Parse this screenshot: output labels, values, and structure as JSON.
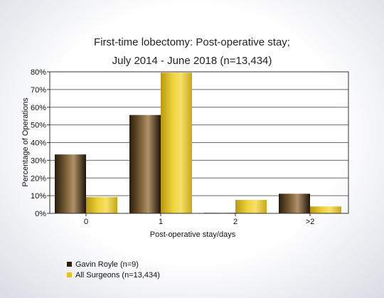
{
  "chart_data": {
    "type": "bar",
    "title": [
      "First-time lobectomy: Post-operative stay;",
      "July 2014 - June 2018 (n=13,434)"
    ],
    "xlabel": "Post-operative stay/days",
    "ylabel": "Percentage of Operations",
    "categories": [
      "0",
      "1",
      "2",
      ">2"
    ],
    "ylim": [
      0,
      80
    ],
    "yticks": [
      "0%",
      "10%",
      "20%",
      "30%",
      "40%",
      "50%",
      "60%",
      "70%",
      "80%"
    ],
    "grid": true,
    "legend_position": "bottom-left",
    "series": [
      {
        "name": "Gavin Royle (n=9)",
        "values": [
          33.3,
          55.6,
          0.2,
          11.1
        ],
        "color": "#3b2a12"
      },
      {
        "name": "All Surgeons (n=13,434)",
        "values": [
          9.2,
          79.5,
          7.6,
          3.9
        ],
        "color": "#e3c21e"
      }
    ]
  }
}
